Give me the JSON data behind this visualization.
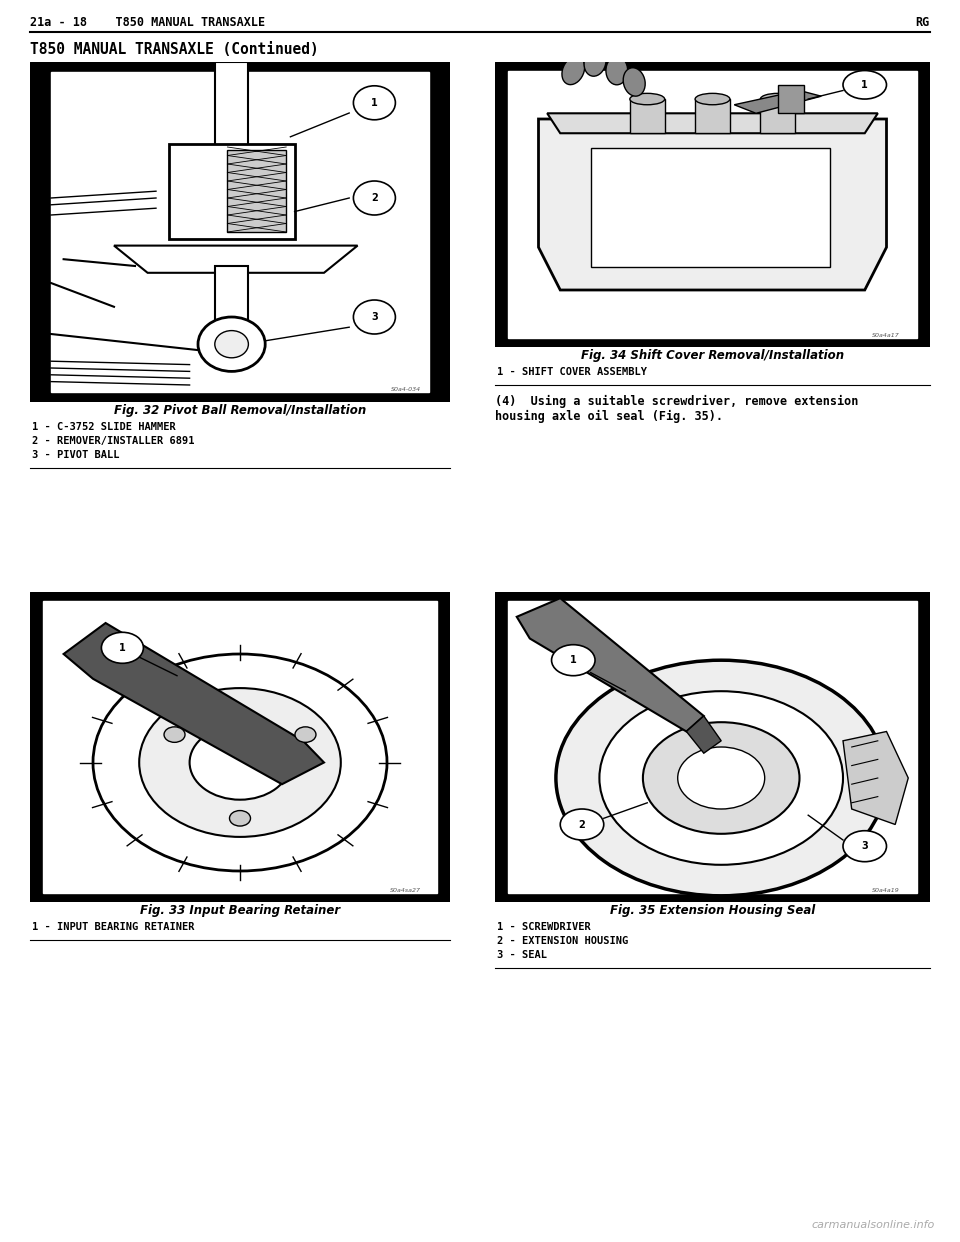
{
  "bg_color": "#ffffff",
  "header_left": "21a - 18    T850 MANUAL TRANSAXLE",
  "header_right": "RG",
  "subtitle": "T850 MANUAL TRANSAXLE (Continued)",
  "fig32_caption_title": "Fig. 32 Pivot Ball Removal/Installation",
  "fig32_items": [
    "1 - C-3752 SLIDE HAMMER",
    "2 - REMOVER/INSTALLER 6891",
    "3 - PIVOT BALL"
  ],
  "fig33_caption_title": "Fig. 33 Input Bearing Retainer",
  "fig33_items": [
    "1 - INPUT BEARING RETAINER"
  ],
  "fig34_caption_title": "Fig. 34 Shift Cover Removal/Installation",
  "fig34_items": [
    "1 - SHIFT COVER ASSEMBLY"
  ],
  "fig35_caption_title": "Fig. 35 Extension Housing Seal",
  "fig35_items": [
    "1 - SCREWDRIVER",
    "2 - EXTENSION HOUSING",
    "3 - SEAL"
  ],
  "step4_text": "(4)  Using a suitable screwdriver, remove extension\nhousing axle oil seal (Fig. 35).",
  "watermark": "carmanualsonline.info",
  "text_color": "#000000",
  "header_fontsize": 8.5,
  "subtitle_fontsize": 10.5,
  "caption_title_fontsize": 8.5,
  "caption_item_fontsize": 7.5,
  "step_fontsize": 8.5,
  "code32": "S0a4-034",
  "code33": "S0a4sa27",
  "code34": "S0a4a17",
  "code35": "S0a4a19"
}
